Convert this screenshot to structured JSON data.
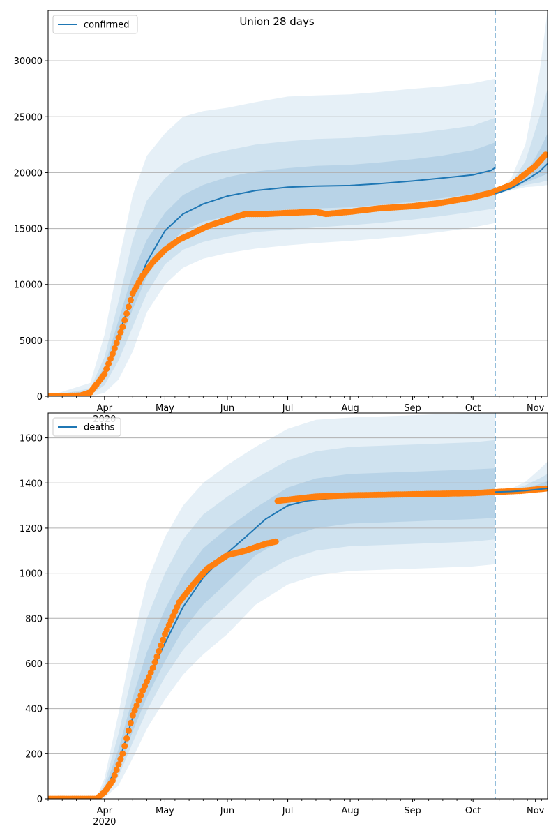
{
  "figure": {
    "title": "Union 28 days"
  },
  "chart_data": [
    {
      "type": "line",
      "title": "Union 28 days",
      "xlabel": "",
      "ylabel": "",
      "x_axis": {
        "type": "date",
        "range": [
          "2020-03-04",
          "2020-11-07"
        ],
        "tick_labels": [
          "Apr\n2020",
          "May",
          "Jun",
          "Jul",
          "Aug",
          "Sep",
          "Oct",
          "Nov"
        ],
        "ticks": [
          "2020-04-01",
          "2020-05-01",
          "2020-06-01",
          "2020-07-01",
          "2020-08-01",
          "2020-09-01",
          "2020-10-01",
          "2020-11-01"
        ]
      },
      "ylim": [
        0,
        34500
      ],
      "yticks": [
        0,
        5000,
        10000,
        15000,
        20000,
        25000,
        30000
      ],
      "grid": "horizontal",
      "legend": {
        "position": "top-left",
        "entries": [
          "confirmed"
        ]
      },
      "forecast_start": "2020-10-12",
      "series": [
        {
          "name": "confirmed",
          "kind": "model_median_line",
          "color": "#1f77b4",
          "x": [
            "2020-03-04",
            "2020-03-20",
            "2020-03-25",
            "2020-04-01",
            "2020-04-08",
            "2020-04-15",
            "2020-04-22",
            "2020-05-01",
            "2020-05-10",
            "2020-05-20",
            "2020-06-01",
            "2020-06-15",
            "2020-07-01",
            "2020-07-15",
            "2020-08-01",
            "2020-08-15",
            "2020-09-01",
            "2020-09-15",
            "2020-10-01",
            "2020-10-10",
            "2020-10-12"
          ],
          "y": [
            0,
            50,
            300,
            2000,
            5500,
            9000,
            12000,
            14800,
            16300,
            17200,
            17900,
            18400,
            18700,
            18800,
            18850,
            19000,
            19250,
            19500,
            19800,
            20200,
            20450
          ]
        },
        {
          "name": "confirmed (observed)",
          "kind": "observed_points",
          "color": "#ff7f0e",
          "x": [
            "2020-03-04",
            "2020-03-20",
            "2020-03-25",
            "2020-04-01",
            "2020-04-05",
            "2020-04-10",
            "2020-04-15",
            "2020-04-20",
            "2020-04-25",
            "2020-05-01",
            "2020-05-08",
            "2020-05-15",
            "2020-05-22",
            "2020-06-01",
            "2020-06-10",
            "2020-06-20",
            "2020-07-01",
            "2020-07-15",
            "2020-07-20",
            "2020-08-01",
            "2020-08-15",
            "2020-09-01",
            "2020-09-15",
            "2020-10-01",
            "2020-10-10",
            "2020-10-20",
            "2020-11-01",
            "2020-11-06"
          ],
          "y": [
            0,
            60,
            350,
            2000,
            3800,
            6200,
            9200,
            10800,
            12000,
            13100,
            14000,
            14600,
            15200,
            15800,
            16300,
            16300,
            16400,
            16500,
            16300,
            16500,
            16800,
            17000,
            17300,
            17800,
            18200,
            18900,
            20600,
            21600
          ]
        },
        {
          "name": "confirmed (forecast median)",
          "kind": "forecast_line",
          "color": "#1f77b4",
          "x": [
            "2020-10-12",
            "2020-10-20",
            "2020-10-27",
            "2020-11-03",
            "2020-11-07"
          ],
          "y": [
            18100,
            18600,
            19300,
            20100,
            20800
          ]
        }
      ],
      "bands": [
        {
          "level": "outer",
          "x": [
            "2020-03-04",
            "2020-03-25",
            "2020-04-01",
            "2020-04-08",
            "2020-04-15",
            "2020-04-22",
            "2020-05-01",
            "2020-05-10",
            "2020-05-20",
            "2020-06-01",
            "2020-06-15",
            "2020-07-01",
            "2020-07-15",
            "2020-08-01",
            "2020-08-15",
            "2020-09-01",
            "2020-09-15",
            "2020-10-01",
            "2020-10-12"
          ],
          "lower": [
            0,
            0,
            300,
            1500,
            4000,
            7500,
            10000,
            11500,
            12300,
            12800,
            13200,
            13500,
            13700,
            13900,
            14100,
            14400,
            14700,
            15100,
            15500
          ],
          "upper": [
            0,
            1200,
            5500,
            12000,
            18000,
            21500,
            23500,
            25000,
            25500,
            25800,
            26300,
            26800,
            26900,
            27000,
            27200,
            27500,
            27700,
            28000,
            28400
          ]
        },
        {
          "level": "middle",
          "x": [
            "2020-03-04",
            "2020-03-25",
            "2020-04-01",
            "2020-04-08",
            "2020-04-15",
            "2020-04-22",
            "2020-05-01",
            "2020-05-10",
            "2020-05-20",
            "2020-06-01",
            "2020-06-15",
            "2020-07-01",
            "2020-07-15",
            "2020-08-01",
            "2020-08-15",
            "2020-09-01",
            "2020-09-15",
            "2020-10-01",
            "2020-10-12"
          ],
          "lower": [
            0,
            100,
            1000,
            3200,
            6200,
            9200,
            11800,
            13100,
            13800,
            14300,
            14700,
            14900,
            15100,
            15300,
            15500,
            15800,
            16100,
            16500,
            16800
          ],
          "upper": [
            0,
            700,
            3500,
            8500,
            14000,
            17500,
            19500,
            20800,
            21500,
            22000,
            22500,
            22800,
            23000,
            23100,
            23300,
            23500,
            23800,
            24200,
            24900
          ]
        },
        {
          "level": "inner",
          "x": [
            "2020-03-04",
            "2020-03-25",
            "2020-04-01",
            "2020-04-08",
            "2020-04-15",
            "2020-04-22",
            "2020-05-01",
            "2020-05-10",
            "2020-05-20",
            "2020-06-01",
            "2020-06-15",
            "2020-07-01",
            "2020-07-15",
            "2020-08-01",
            "2020-08-15",
            "2020-09-01",
            "2020-09-15",
            "2020-10-01",
            "2020-10-12"
          ],
          "lower": [
            0,
            200,
            1500,
            4500,
            7800,
            10700,
            13300,
            14800,
            15600,
            16100,
            16500,
            16700,
            16800,
            16900,
            17100,
            17400,
            17700,
            18100,
            18400
          ],
          "upper": [
            0,
            500,
            2700,
            6800,
            11000,
            14000,
            16400,
            18000,
            18900,
            19600,
            20100,
            20400,
            20600,
            20700,
            20900,
            21200,
            21500,
            22000,
            22700
          ]
        },
        {
          "level": "forecast-outer",
          "x": [
            "2020-10-12",
            "2020-10-20",
            "2020-10-27",
            "2020-11-03",
            "2020-11-07"
          ],
          "lower": [
            18100,
            18400,
            18700,
            18800,
            18900
          ],
          "upper": [
            18100,
            19500,
            22500,
            29000,
            34500
          ]
        },
        {
          "level": "forecast-middle",
          "x": [
            "2020-10-12",
            "2020-10-20",
            "2020-10-27",
            "2020-11-03",
            "2020-11-07"
          ],
          "lower": [
            18100,
            18500,
            18900,
            19100,
            19300
          ],
          "upper": [
            18100,
            19100,
            21000,
            25000,
            27500
          ]
        },
        {
          "level": "forecast-inner",
          "x": [
            "2020-10-12",
            "2020-10-20",
            "2020-10-27",
            "2020-11-03",
            "2020-11-07"
          ],
          "lower": [
            18100,
            18550,
            19100,
            19600,
            19900
          ],
          "upper": [
            18100,
            18800,
            19800,
            22000,
            23500
          ]
        }
      ]
    },
    {
      "type": "line",
      "title": "",
      "xlabel": "",
      "ylabel": "",
      "x_axis": {
        "type": "date",
        "range": [
          "2020-03-04",
          "2020-11-07"
        ],
        "tick_labels": [
          "Apr\n2020",
          "May",
          "Jun",
          "Jul",
          "Aug",
          "Sep",
          "Oct",
          "Nov"
        ],
        "ticks": [
          "2020-04-01",
          "2020-05-01",
          "2020-06-01",
          "2020-07-01",
          "2020-08-01",
          "2020-09-01",
          "2020-10-01",
          "2020-11-01"
        ]
      },
      "ylim": [
        0,
        1710
      ],
      "yticks": [
        0,
        200,
        400,
        600,
        800,
        1000,
        1200,
        1400,
        1600
      ],
      "grid": "horizontal",
      "legend": {
        "position": "top-left",
        "entries": [
          "deaths"
        ]
      },
      "forecast_start": "2020-10-12",
      "series": [
        {
          "name": "deaths",
          "kind": "model_median_line",
          "color": "#1f77b4",
          "x": [
            "2020-03-04",
            "2020-03-28",
            "2020-04-01",
            "2020-04-08",
            "2020-04-15",
            "2020-04-22",
            "2020-05-01",
            "2020-05-10",
            "2020-05-20",
            "2020-06-01",
            "2020-06-10",
            "2020-06-20",
            "2020-07-01",
            "2020-07-10",
            "2020-07-20",
            "2020-08-01",
            "2020-09-01",
            "2020-10-01",
            "2020-10-12"
          ],
          "y": [
            0,
            0,
            30,
            160,
            360,
            520,
            690,
            850,
            980,
            1090,
            1160,
            1240,
            1300,
            1320,
            1330,
            1340,
            1345,
            1350,
            1355
          ]
        },
        {
          "name": "deaths (observed)",
          "kind": "observed_points",
          "color": "#ff7f0e",
          "x": [
            "2020-03-04",
            "2020-03-28",
            "2020-04-01",
            "2020-04-05",
            "2020-04-10",
            "2020-04-15",
            "2020-04-20",
            "2020-04-25",
            "2020-05-01",
            "2020-05-08",
            "2020-05-15",
            "2020-05-22",
            "2020-06-01",
            "2020-06-10",
            "2020-06-20",
            "2020-06-25",
            "2020-06-26",
            "2020-07-05",
            "2020-07-15",
            "2020-08-01",
            "2020-09-01",
            "2020-10-01",
            "2020-10-12",
            "2020-10-25",
            "2020-11-06"
          ],
          "y": [
            0,
            0,
            30,
            80,
            200,
            370,
            480,
            580,
            730,
            870,
            950,
            1020,
            1080,
            1100,
            1130,
            1140,
            1320,
            1330,
            1340,
            1345,
            1350,
            1355,
            1360,
            1365,
            1375
          ]
        },
        {
          "name": "deaths (forecast median)",
          "kind": "forecast_line",
          "color": "#1f77b4",
          "x": [
            "2020-10-12",
            "2020-10-20",
            "2020-10-27",
            "2020-11-03",
            "2020-11-07"
          ],
          "y": [
            1360,
            1362,
            1366,
            1372,
            1376
          ]
        }
      ],
      "bands": [
        {
          "level": "outer",
          "x": [
            "2020-03-04",
            "2020-03-28",
            "2020-04-01",
            "2020-04-08",
            "2020-04-15",
            "2020-04-22",
            "2020-05-01",
            "2020-05-10",
            "2020-05-20",
            "2020-06-01",
            "2020-06-15",
            "2020-07-01",
            "2020-07-15",
            "2020-08-01",
            "2020-09-01",
            "2020-10-01",
            "2020-10-12"
          ],
          "lower": [
            0,
            0,
            5,
            60,
            180,
            310,
            440,
            550,
            640,
            730,
            860,
            950,
            990,
            1010,
            1020,
            1030,
            1040
          ],
          "upper": [
            0,
            5,
            90,
            380,
            700,
            960,
            1160,
            1300,
            1400,
            1480,
            1560,
            1640,
            1680,
            1690,
            1700,
            1710,
            1710
          ]
        },
        {
          "level": "middle",
          "x": [
            "2020-03-04",
            "2020-03-28",
            "2020-04-01",
            "2020-04-08",
            "2020-04-15",
            "2020-04-22",
            "2020-05-01",
            "2020-05-10",
            "2020-05-20",
            "2020-06-01",
            "2020-06-15",
            "2020-07-01",
            "2020-07-15",
            "2020-08-01",
            "2020-09-01",
            "2020-10-01",
            "2020-10-12"
          ],
          "lower": [
            0,
            0,
            12,
            100,
            250,
            390,
            540,
            660,
            760,
            860,
            980,
            1060,
            1100,
            1120,
            1130,
            1140,
            1150
          ],
          "upper": [
            0,
            3,
            65,
            290,
            560,
            800,
            1000,
            1150,
            1260,
            1340,
            1420,
            1500,
            1540,
            1560,
            1570,
            1580,
            1590
          ]
        },
        {
          "level": "inner",
          "x": [
            "2020-03-04",
            "2020-03-28",
            "2020-04-01",
            "2020-04-08",
            "2020-04-15",
            "2020-04-22",
            "2020-05-01",
            "2020-05-10",
            "2020-05-20",
            "2020-06-01",
            "2020-06-15",
            "2020-07-01",
            "2020-07-15",
            "2020-08-01",
            "2020-09-01",
            "2020-10-01",
            "2020-10-12"
          ],
          "lower": [
            0,
            0,
            20,
            130,
            300,
            450,
            610,
            750,
            860,
            960,
            1080,
            1160,
            1200,
            1220,
            1230,
            1240,
            1245
          ],
          "upper": [
            0,
            2,
            45,
            220,
            450,
            650,
            840,
            990,
            1110,
            1200,
            1290,
            1380,
            1420,
            1440,
            1450,
            1460,
            1465
          ]
        },
        {
          "level": "forecast-outer",
          "x": [
            "2020-10-12",
            "2020-10-20",
            "2020-10-27",
            "2020-11-03",
            "2020-11-07"
          ],
          "lower": [
            1360,
            1360,
            1360,
            1362,
            1362
          ],
          "upper": [
            1360,
            1375,
            1405,
            1460,
            1495
          ]
        },
        {
          "level": "forecast-middle",
          "x": [
            "2020-10-12",
            "2020-10-20",
            "2020-10-27",
            "2020-11-03",
            "2020-11-07"
          ],
          "lower": [
            1360,
            1360,
            1362,
            1365,
            1367
          ],
          "upper": [
            1360,
            1370,
            1390,
            1420,
            1440
          ]
        },
        {
          "level": "forecast-inner",
          "x": [
            "2020-10-12",
            "2020-10-20",
            "2020-10-27",
            "2020-11-03",
            "2020-11-07"
          ],
          "lower": [
            1360,
            1361,
            1364,
            1368,
            1370
          ],
          "upper": [
            1360,
            1366,
            1378,
            1395,
            1408
          ]
        }
      ]
    }
  ]
}
